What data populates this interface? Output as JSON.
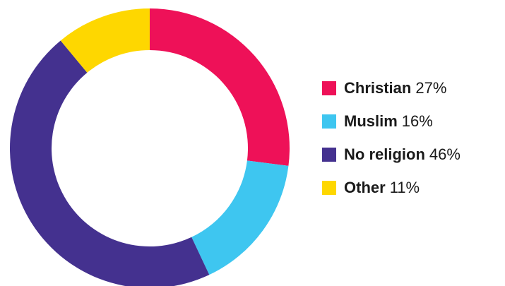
{
  "chart_data": {
    "type": "pie",
    "title": "",
    "start_angle_deg": 0,
    "direction": "clockwise",
    "slices": [
      {
        "label": "Christian",
        "value": 27,
        "value_text": "27%",
        "color": "#EE1158"
      },
      {
        "label": "Muslim",
        "value": 16,
        "value_text": "16%",
        "color": "#3EC6F0"
      },
      {
        "label": "No religion",
        "value": 46,
        "value_text": "46%",
        "color": "#44318F"
      },
      {
        "label": "Other",
        "value": 11,
        "value_text": "11%",
        "color": "#FED700"
      }
    ],
    "legend_position": "right"
  }
}
